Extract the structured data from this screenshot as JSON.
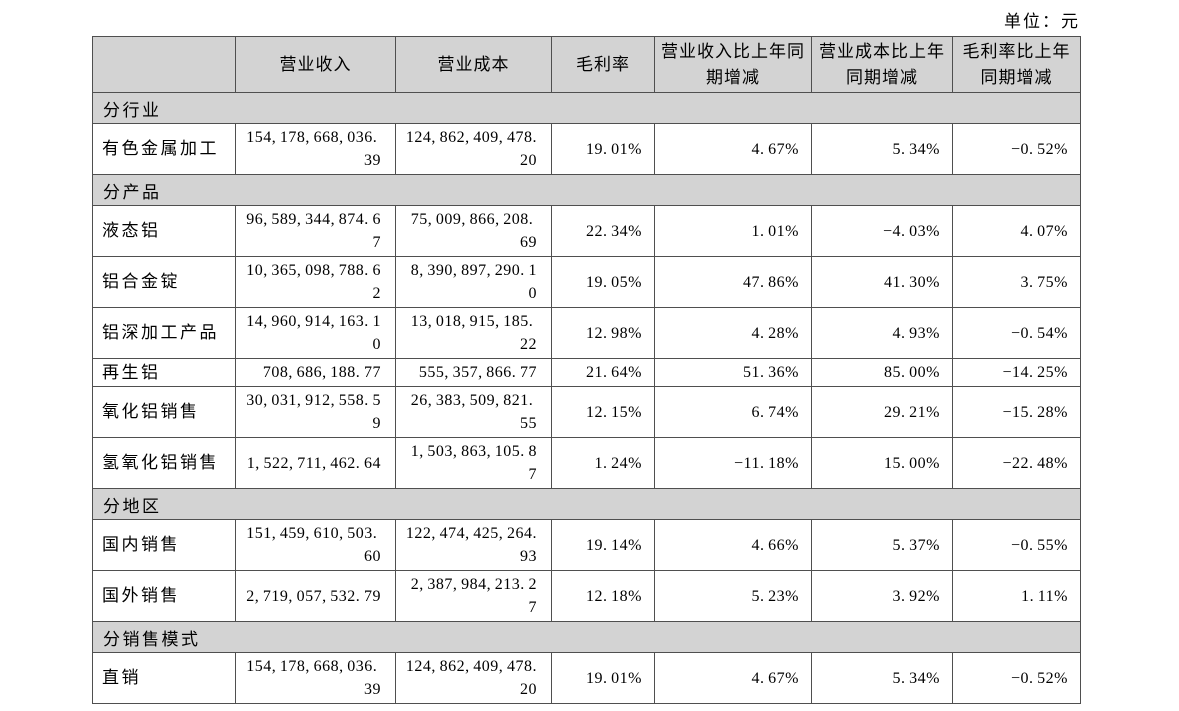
{
  "unit_label": "单位：元",
  "colors": {
    "header_bg": "#d3d3d3",
    "section_bg": "#d3d3d3",
    "border": "#4f4f4f",
    "text": "#000000"
  },
  "table": {
    "headers": [
      "",
      "营业收入",
      "营业成本",
      "毛利率",
      "营业收入比上年同期增减",
      "营业成本比上年同期增减",
      "毛利率比上年同期增减"
    ],
    "sections": [
      {
        "label": "分行业",
        "rows": [
          {
            "category": "有色金属加工",
            "revenue": "154,178,668,036.39",
            "cost": "124,862,409,478.20",
            "gross_margin": "19.01%",
            "revenue_yoy": "4.67%",
            "cost_yoy": "5.34%",
            "margin_yoy": "-0.52%"
          }
        ]
      },
      {
        "label": "分产品",
        "rows": [
          {
            "category": "液态铝",
            "revenue": "96,589,344,874.67",
            "cost": "75,009,866,208.69",
            "gross_margin": "22.34%",
            "revenue_yoy": "1.01%",
            "cost_yoy": "-4.03%",
            "margin_yoy": "4.07%"
          },
          {
            "category": "铝合金锭",
            "revenue": "10,365,098,788.62",
            "cost": "8,390,897,290.10",
            "gross_margin": "19.05%",
            "revenue_yoy": "47.86%",
            "cost_yoy": "41.30%",
            "margin_yoy": "3.75%"
          },
          {
            "category": "铝深加工产品",
            "revenue": "14,960,914,163.10",
            "cost": "13,018,915,185.22",
            "gross_margin": "12.98%",
            "revenue_yoy": "4.28%",
            "cost_yoy": "4.93%",
            "margin_yoy": "-0.54%"
          },
          {
            "category": "再生铝",
            "revenue": "708,686,188.77",
            "cost": "555,357,866.77",
            "gross_margin": "21.64%",
            "revenue_yoy": "51.36%",
            "cost_yoy": "85.00%",
            "margin_yoy": "-14.25%"
          },
          {
            "category": "氧化铝销售",
            "revenue": "30,031,912,558.59",
            "cost": "26,383,509,821.55",
            "gross_margin": "12.15%",
            "revenue_yoy": "6.74%",
            "cost_yoy": "29.21%",
            "margin_yoy": "-15.28%"
          },
          {
            "category": "氢氧化铝销售",
            "revenue": "1,522,711,462.64",
            "cost": "1,503,863,105.87",
            "gross_margin": "1.24%",
            "revenue_yoy": "-11.18%",
            "cost_yoy": "15.00%",
            "margin_yoy": "-22.48%"
          }
        ]
      },
      {
        "label": "分地区",
        "rows": [
          {
            "category": "国内销售",
            "revenue": "151,459,610,503.60",
            "cost": "122,474,425,264.93",
            "gross_margin": "19.14%",
            "revenue_yoy": "4.66%",
            "cost_yoy": "5.37%",
            "margin_yoy": "-0.55%"
          },
          {
            "category": "国外销售",
            "revenue": "2,719,057,532.79",
            "cost": "2,387,984,213.27",
            "gross_margin": "12.18%",
            "revenue_yoy": "5.23%",
            "cost_yoy": "3.92%",
            "margin_yoy": "1.11%"
          }
        ]
      },
      {
        "label": "分销售模式",
        "rows": [
          {
            "category": "直销",
            "revenue": "154,178,668,036.39",
            "cost": "124,862,409,478.20",
            "gross_margin": "19.01%",
            "revenue_yoy": "4.67%",
            "cost_yoy": "5.34%",
            "margin_yoy": "-0.52%"
          }
        ]
      }
    ]
  }
}
